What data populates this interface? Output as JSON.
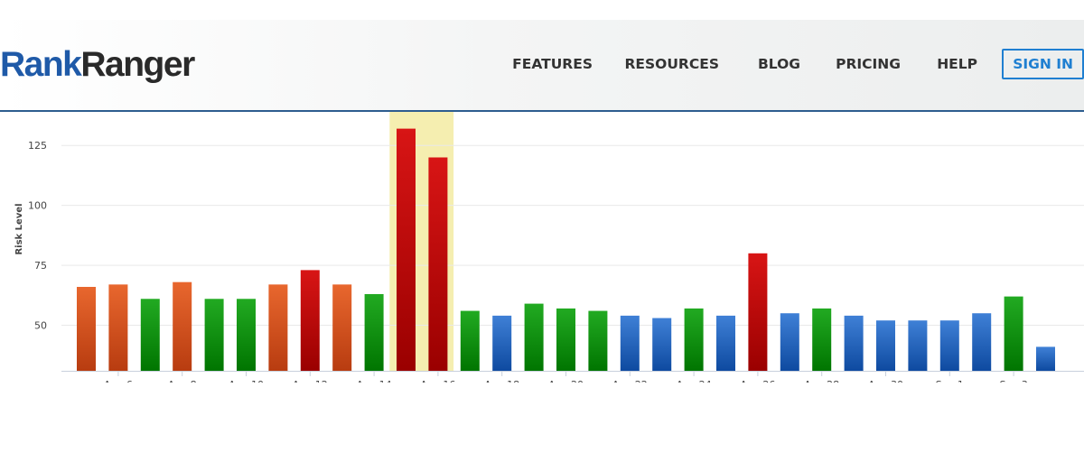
{
  "header": {
    "logo": {
      "part1": "Rank",
      "part2": "Ranger"
    },
    "nav": [
      {
        "label": "FEATURES"
      },
      {
        "label": "RESOURCES"
      },
      {
        "label": "BLOG"
      },
      {
        "label": "PRICING"
      },
      {
        "label": "HELP"
      }
    ],
    "signin_label": "SIGN IN",
    "colors": {
      "brand_blue": "#1f5aa8",
      "signin_blue": "#1f7fd1"
    }
  },
  "chart_data": {
    "type": "bar",
    "title": "",
    "xlabel": "",
    "ylabel": "Risk Level",
    "ylim": [
      31,
      139
    ],
    "yticks": [
      50,
      75,
      100,
      125
    ],
    "grid": true,
    "legend": "none",
    "x_tick_labels": [
      "Aug 6",
      "Aug 8",
      "Aug 10",
      "Aug 12",
      "Aug 14",
      "Aug 16",
      "Aug 18",
      "Aug 20",
      "Aug 22",
      "Aug 24",
      "Aug 26",
      "Aug 28",
      "Aug 30",
      "Sep 1",
      "Sep 3"
    ],
    "highlight_range": [
      "Aug 15",
      "Aug 16"
    ],
    "categories": [
      "Aug 5",
      "Aug 6",
      "Aug 7",
      "Aug 8",
      "Aug 9",
      "Aug 10",
      "Aug 11",
      "Aug 12",
      "Aug 13",
      "Aug 14",
      "Aug 15",
      "Aug 16",
      "Aug 17",
      "Aug 18",
      "Aug 19",
      "Aug 20",
      "Aug 21",
      "Aug 22",
      "Aug 23",
      "Aug 24",
      "Aug 25",
      "Aug 26",
      "Aug 27",
      "Aug 28",
      "Aug 29",
      "Aug 30",
      "Aug 31",
      "Sep 1",
      "Sep 2",
      "Sep 3",
      "Sep 4"
    ],
    "values": [
      66,
      67,
      61,
      68,
      61,
      61,
      67,
      73,
      67,
      63,
      132,
      120,
      56,
      54,
      59,
      57,
      56,
      54,
      53,
      57,
      54,
      80,
      55,
      57,
      54,
      52,
      52,
      52,
      55,
      62,
      41
    ],
    "bar_levels": [
      "orange",
      "orange",
      "green",
      "orange",
      "green",
      "green",
      "orange",
      "red",
      "orange",
      "green",
      "red",
      "red",
      "green",
      "blue",
      "green",
      "green",
      "green",
      "blue",
      "blue",
      "green",
      "blue",
      "red",
      "blue",
      "green",
      "blue",
      "blue",
      "blue",
      "blue",
      "blue",
      "green",
      "blue"
    ],
    "level_colors": {
      "orange": [
        "#e8672e",
        "#b83c10"
      ],
      "green": [
        "#22aa22",
        "#007500"
      ],
      "red": [
        "#d81515",
        "#9a0000"
      ],
      "blue": [
        "#3f80d6",
        "#0e4aa0"
      ]
    },
    "highlight_color": "#f5eeb0"
  }
}
